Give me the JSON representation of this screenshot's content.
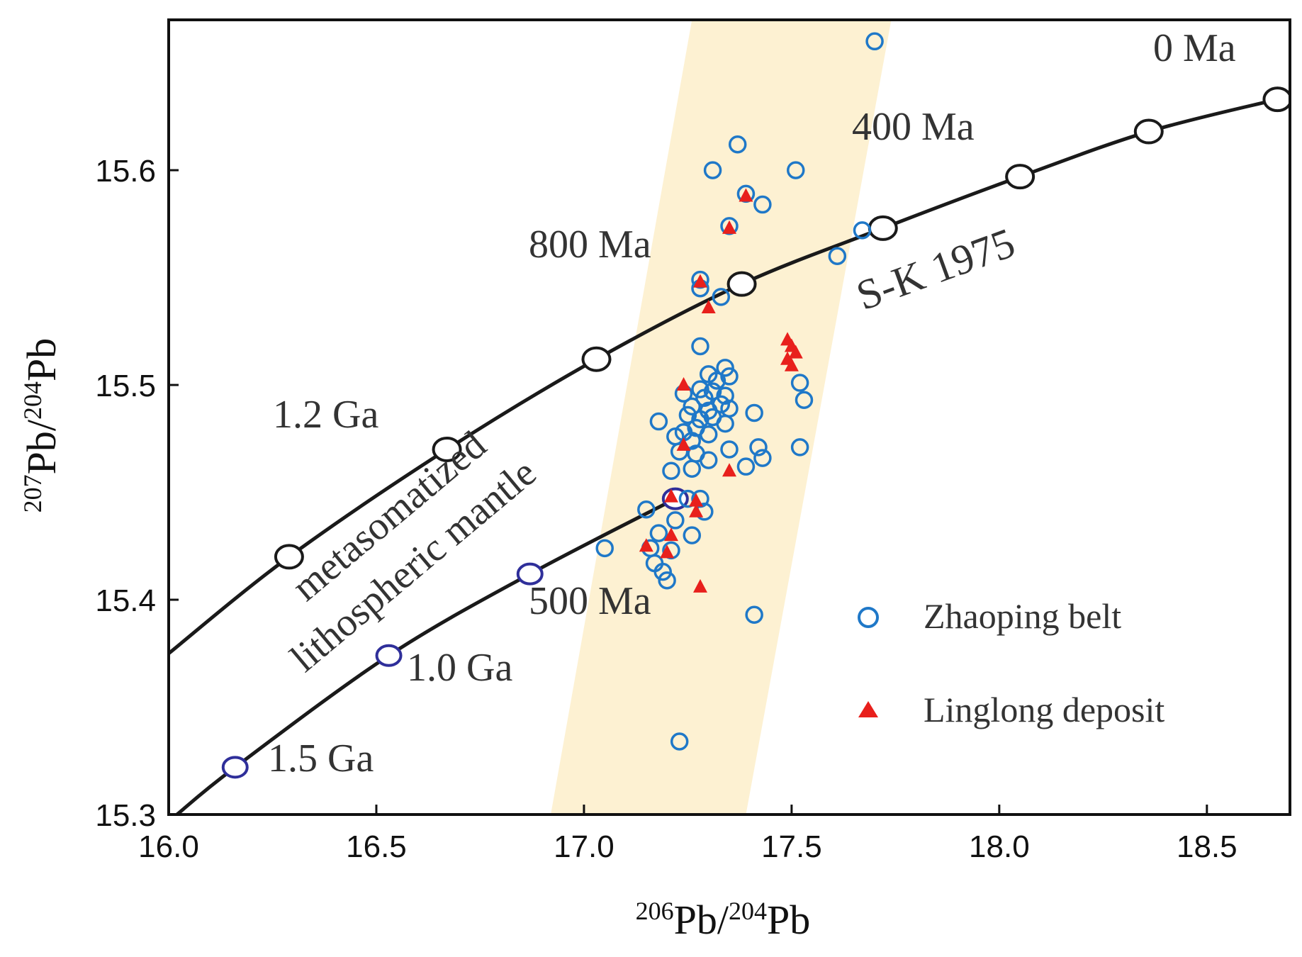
{
  "chart_data": {
    "type": "scatter",
    "xlabel": {
      "sup": "206",
      "main": "Pb/",
      "sup2": "204",
      "main2": "Pb"
    },
    "ylabel": {
      "sup": "207",
      "main": "Pb/",
      "sup2": "204",
      "main2": "Pb"
    },
    "xlim": [
      16.0,
      18.7
    ],
    "ylim": [
      15.3,
      15.67
    ],
    "xticks": [
      16.0,
      16.5,
      17.0,
      17.5,
      18.0,
      18.5
    ],
    "xtick_labels": [
      "16.0",
      "16.5",
      "17.0",
      "17.5",
      "18.0",
      "18.5"
    ],
    "yticks": [
      15.3,
      15.4,
      15.5,
      15.6
    ],
    "ytick_labels": [
      "15.3",
      "15.4",
      "15.5",
      "15.6"
    ],
    "band": {
      "color": "#fdf1d2",
      "polygon": [
        [
          16.92,
          15.3
        ],
        [
          17.39,
          15.3
        ],
        [
          17.74,
          15.67
        ],
        [
          17.26,
          15.67
        ]
      ]
    },
    "curves": [
      {
        "name": "S-K 1975",
        "points": [
          [
            16.0,
            15.375
          ],
          [
            16.29,
            15.42
          ],
          [
            16.67,
            15.47
          ],
          [
            17.03,
            15.512
          ],
          [
            17.38,
            15.547
          ],
          [
            17.72,
            15.573
          ],
          [
            18.05,
            15.597
          ],
          [
            18.36,
            15.618
          ],
          [
            18.67,
            15.633
          ]
        ],
        "nodes": [
          [
            16.29,
            15.42
          ],
          [
            16.67,
            15.47
          ],
          [
            17.03,
            15.512
          ],
          [
            17.38,
            15.547
          ],
          [
            17.72,
            15.573
          ],
          [
            18.05,
            15.597
          ],
          [
            18.36,
            15.618
          ],
          [
            18.67,
            15.633
          ]
        ]
      },
      {
        "name": "metasomatized lithospheric mantle",
        "points": [
          [
            16.02,
            15.3
          ],
          [
            16.16,
            15.322
          ],
          [
            16.53,
            15.374
          ],
          [
            16.87,
            15.412
          ],
          [
            17.22,
            15.447
          ]
        ],
        "nodes": [
          [
            16.16,
            15.322
          ],
          [
            16.53,
            15.374
          ],
          [
            16.87,
            15.412
          ],
          [
            17.22,
            15.447
          ]
        ]
      }
    ],
    "annotations": {
      "zero_ma": "0 Ma",
      "four_hundred_ma": "400 Ma",
      "eight_hundred_ma": "800 Ma",
      "one_point_two_ga": "1.2 Ga",
      "five_hundred_ma": "500 Ma",
      "one_point_zero_ga": "1.0 Ga",
      "one_point_five_ga": "1.5 Ga",
      "sk1975": "S-K 1975",
      "metasomatized": "metasomatized",
      "lithospheric": "lithospheric mantle"
    },
    "series": [
      {
        "name": "Zhaoping belt",
        "marker": "open-circle",
        "color": "#1f78c8",
        "points": [
          [
            17.7,
            15.66
          ],
          [
            17.37,
            15.612
          ],
          [
            17.31,
            15.6
          ],
          [
            17.51,
            15.6
          ],
          [
            17.39,
            15.589
          ],
          [
            17.43,
            15.584
          ],
          [
            17.35,
            15.574
          ],
          [
            17.67,
            15.572
          ],
          [
            17.61,
            15.56
          ],
          [
            17.28,
            15.549
          ],
          [
            17.28,
            15.545
          ],
          [
            17.33,
            15.541
          ],
          [
            17.28,
            15.518
          ],
          [
            17.34,
            15.508
          ],
          [
            17.3,
            15.505
          ],
          [
            17.35,
            15.504
          ],
          [
            17.32,
            15.502
          ],
          [
            17.52,
            15.501
          ],
          [
            17.28,
            15.498
          ],
          [
            17.31,
            15.497
          ],
          [
            17.24,
            15.496
          ],
          [
            17.34,
            15.495
          ],
          [
            17.29,
            15.494
          ],
          [
            17.53,
            15.493
          ],
          [
            17.33,
            15.491
          ],
          [
            17.26,
            15.49
          ],
          [
            17.35,
            15.489
          ],
          [
            17.3,
            15.488
          ],
          [
            17.41,
            15.487
          ],
          [
            17.25,
            15.486
          ],
          [
            17.31,
            15.485
          ],
          [
            17.28,
            15.484
          ],
          [
            17.18,
            15.483
          ],
          [
            17.34,
            15.482
          ],
          [
            17.27,
            15.48
          ],
          [
            17.24,
            15.478
          ],
          [
            17.3,
            15.477
          ],
          [
            17.22,
            15.476
          ],
          [
            17.26,
            15.474
          ],
          [
            17.52,
            15.471
          ],
          [
            17.42,
            15.471
          ],
          [
            17.35,
            15.47
          ],
          [
            17.23,
            15.469
          ],
          [
            17.27,
            15.468
          ],
          [
            17.43,
            15.466
          ],
          [
            17.3,
            15.465
          ],
          [
            17.39,
            15.462
          ],
          [
            17.26,
            15.461
          ],
          [
            17.21,
            15.46
          ],
          [
            17.25,
            15.447
          ],
          [
            17.28,
            15.447
          ],
          [
            17.15,
            15.442
          ],
          [
            17.29,
            15.441
          ],
          [
            17.22,
            15.437
          ],
          [
            17.18,
            15.431
          ],
          [
            17.26,
            15.43
          ],
          [
            17.05,
            15.424
          ],
          [
            17.16,
            15.424
          ],
          [
            17.21,
            15.423
          ],
          [
            17.17,
            15.417
          ],
          [
            17.19,
            15.413
          ],
          [
            17.2,
            15.409
          ],
          [
            17.41,
            15.393
          ],
          [
            17.23,
            15.334
          ]
        ]
      },
      {
        "name": "Linglong deposit",
        "marker": "filled-triangle",
        "color": "#e8201c",
        "points": [
          [
            17.39,
            15.588
          ],
          [
            17.35,
            15.573
          ],
          [
            17.28,
            15.548
          ],
          [
            17.3,
            15.536
          ],
          [
            17.49,
            15.521
          ],
          [
            17.5,
            15.518
          ],
          [
            17.51,
            15.515
          ],
          [
            17.49,
            15.512
          ],
          [
            17.5,
            15.509
          ],
          [
            17.24,
            15.5
          ],
          [
            17.24,
            15.472
          ],
          [
            17.35,
            15.46
          ],
          [
            17.21,
            15.448
          ],
          [
            17.27,
            15.446
          ],
          [
            17.27,
            15.441
          ],
          [
            17.21,
            15.43
          ],
          [
            17.15,
            15.425
          ],
          [
            17.2,
            15.422
          ],
          [
            17.28,
            15.406
          ]
        ]
      }
    ]
  }
}
